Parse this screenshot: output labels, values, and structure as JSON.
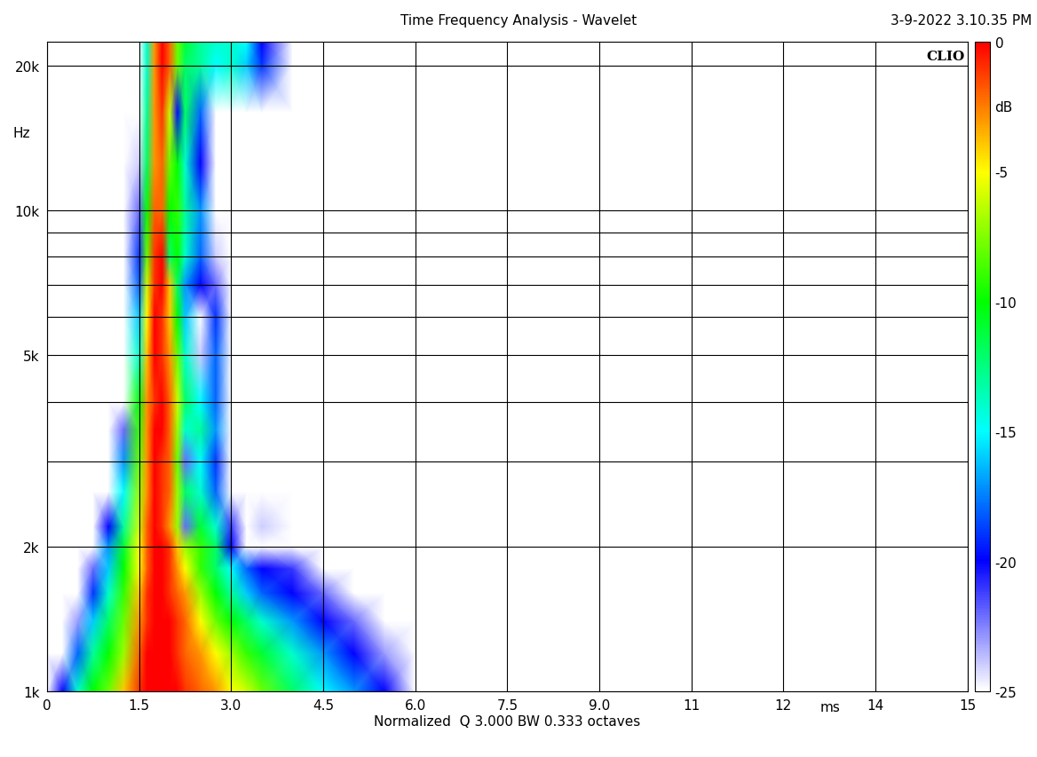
{
  "chart_data": {
    "type": "heatmap",
    "title": "Time Frequency Analysis - Wavelet",
    "timestamp": "3-9-2022 3.10.35 PM",
    "brand": "CLIO",
    "xlabel": "Normalized  Q 3.000 BW 0.333 octaves",
    "x_unit_label": "ms",
    "ylabel": "Hz",
    "colorbar_label": "dB",
    "log": "y",
    "grid": true,
    "xlim": [
      0,
      15
    ],
    "xticks": [
      0,
      1.5,
      {
        "value": 3,
        "label": "3.0"
      },
      4.5,
      {
        "value": 6,
        "label": "6.0"
      },
      7.5,
      {
        "value": 9,
        "label": "9.0"
      },
      {
        "value": 10.5,
        "label": "11"
      },
      12,
      {
        "value": 13.5,
        "label": "14"
      },
      15
    ],
    "ylim": [
      1000,
      22400
    ],
    "yticks": [
      {
        "value": 1000,
        "label": "1k"
      },
      {
        "value": 2000,
        "label": "2k"
      },
      {
        "value": 5000,
        "label": "5k"
      },
      {
        "value": 10000,
        "label": "10k"
      },
      {
        "value": 20000,
        "label": "20k"
      }
    ],
    "y_grid_lines": [
      3000,
      4000,
      6000,
      7000,
      8000,
      9000
    ],
    "x": [
      0,
      0.25,
      0.5,
      0.75,
      1.0,
      1.25,
      1.5,
      1.625,
      1.75,
      1.875,
      2.0,
      2.125,
      2.25,
      2.5,
      2.75,
      3.0,
      3.25,
      3.5,
      4.0,
      4.5,
      5.0,
      5.5,
      6.0,
      6.5
    ],
    "y": [
      1000,
      1200,
      1400,
      1600,
      1800,
      2000,
      2200,
      2600,
      3000,
      3500,
      4000,
      5000,
      6000,
      7000,
      8000,
      10000,
      12500,
      16000,
      20000,
      22400
    ],
    "cells": [
      [
        -30,
        -20,
        -14,
        -10,
        -8,
        -4,
        -1,
        0,
        0,
        0,
        0,
        0,
        -1,
        -2,
        -3,
        -5,
        -6,
        -8,
        -12,
        -15,
        -17,
        -20,
        -25,
        -30
      ],
      [
        -30,
        -27,
        -18,
        -13,
        -10,
        -7,
        -2,
        0,
        0,
        0,
        0,
        -1,
        -2,
        -3,
        -5,
        -7,
        -9,
        -11,
        -14,
        -17,
        -20,
        -23,
        -27,
        -30
      ],
      [
        -30,
        -30,
        -23,
        -16,
        -12,
        -8,
        -3,
        -1,
        0,
        0,
        0,
        -1,
        -2,
        -5,
        -8,
        -10,
        -12,
        -14,
        -17,
        -20,
        -22,
        -26,
        -30,
        -30
      ],
      [
        -30,
        -30,
        -28,
        -19,
        -14,
        -9,
        -4,
        -1,
        0,
        0,
        -1,
        -2,
        -3,
        -7,
        -10,
        -13,
        -16,
        -18,
        -20,
        -22,
        -26,
        -30,
        -30,
        -30
      ],
      [
        -30,
        -30,
        -30,
        -22,
        -16,
        -10,
        -5,
        -2,
        0,
        0,
        -1,
        -3,
        -5,
        -9,
        -12,
        -15,
        -18,
        -20,
        -21,
        -25,
        -30,
        -30,
        -30,
        -30
      ],
      [
        -30,
        -30,
        -30,
        -25,
        -17,
        -11,
        -5,
        -2,
        0,
        0,
        -1,
        -4,
        -7,
        -9,
        -12,
        -20,
        -30,
        -25,
        -30,
        -30,
        -30,
        -30,
        -30,
        -30
      ],
      [
        -30,
        -30,
        -30,
        -28,
        -20,
        -13,
        -6,
        -2,
        0,
        -1,
        -3,
        -7,
        -22,
        -11,
        -14,
        -21,
        -30,
        -24,
        -30,
        -30,
        -30,
        -30,
        -30,
        -30
      ],
      [
        -30,
        -30,
        -30,
        -30,
        -25,
        -15,
        -7,
        -3,
        0,
        -1,
        -2,
        -7,
        -12,
        -14,
        -18,
        -30,
        -30,
        -30,
        -30,
        -30,
        -30,
        -30,
        -30,
        -30
      ],
      [
        -30,
        -30,
        -30,
        -30,
        -28,
        -17,
        -8,
        -3,
        0,
        -1,
        -2,
        -8,
        -22,
        -15,
        -19,
        -30,
        -30,
        -30,
        -30,
        -30,
        -30,
        -30,
        -30,
        -30
      ],
      [
        -30,
        -30,
        -30,
        -30,
        -30,
        -22,
        -9,
        -3,
        0,
        0,
        -2,
        -7,
        -14,
        -13,
        -17,
        -30,
        -30,
        -30,
        -30,
        -30,
        -30,
        -30,
        -30,
        -30
      ],
      [
        -30,
        -30,
        -30,
        -30,
        -30,
        -26,
        -10,
        -3,
        -1,
        0,
        -2,
        -6,
        -12,
        -15,
        -18,
        -30,
        -30,
        -30,
        -30,
        -30,
        -30,
        -30,
        -30,
        -30
      ],
      [
        -30,
        -30,
        -30,
        -30,
        -30,
        -30,
        -14,
        -4,
        0,
        -1,
        -3,
        -8,
        -14,
        -24,
        -18,
        -30,
        -30,
        -30,
        -30,
        -30,
        -30,
        -30,
        -30,
        -30
      ],
      [
        -30,
        -30,
        -30,
        -30,
        -30,
        -30,
        -16,
        -5,
        0,
        -1,
        -4,
        -10,
        -16,
        -25,
        -19,
        -30,
        -30,
        -30,
        -30,
        -30,
        -30,
        -30,
        -30,
        -30
      ],
      [
        -30,
        -30,
        -30,
        -30,
        -30,
        -30,
        -18,
        -6,
        -1,
        0,
        -4,
        -12,
        -17,
        -20,
        -22,
        -30,
        -30,
        -30,
        -30,
        -30,
        -30,
        -30,
        -30,
        -30
      ],
      [
        -30,
        -30,
        -30,
        -30,
        -30,
        -30,
        -19,
        -8,
        -1,
        0,
        -12,
        -10,
        -14,
        -18,
        -24,
        -30,
        -30,
        -30,
        -30,
        -30,
        -30,
        -30,
        -30,
        -30
      ],
      [
        -30,
        -30,
        -30,
        -30,
        -30,
        -30,
        -22,
        -10,
        -2,
        -2,
        -10,
        -9,
        -13,
        -17,
        -30,
        -30,
        -30,
        -30,
        -30,
        -30,
        -30,
        -30,
        -30,
        -30
      ],
      [
        -30,
        -30,
        -30,
        -30,
        -30,
        -30,
        -24,
        -12,
        -3,
        -2,
        -8,
        -10,
        -14,
        -20,
        -30,
        -30,
        -30,
        -30,
        -30,
        -30,
        -30,
        -30,
        -30,
        -30
      ],
      [
        -30,
        -30,
        -30,
        -30,
        -30,
        -30,
        -25,
        -13,
        -3,
        -1,
        -6,
        -20,
        -12,
        -18,
        -30,
        -30,
        -30,
        -30,
        -30,
        -30,
        -30,
        -30,
        -30,
        -30
      ],
      [
        -30,
        -30,
        -30,
        -30,
        -30,
        -30,
        -26,
        -14,
        -3,
        0,
        -2,
        -8,
        -12,
        -13,
        -15,
        -14,
        -16,
        -19,
        -30,
        -30,
        -30,
        -30,
        -30,
        -30
      ],
      [
        -30,
        -30,
        -30,
        -30,
        -30,
        -30,
        -26,
        -14,
        -3,
        0,
        -2,
        -8,
        -11,
        -13,
        -14,
        -14,
        -15,
        -20,
        -30,
        -30,
        -30,
        -30,
        -30,
        -30
      ]
    ],
    "colorbar": {
      "range": [
        -25,
        0
      ],
      "ticks": [
        0,
        -5,
        -10,
        -15,
        -20,
        -25
      ]
    }
  }
}
